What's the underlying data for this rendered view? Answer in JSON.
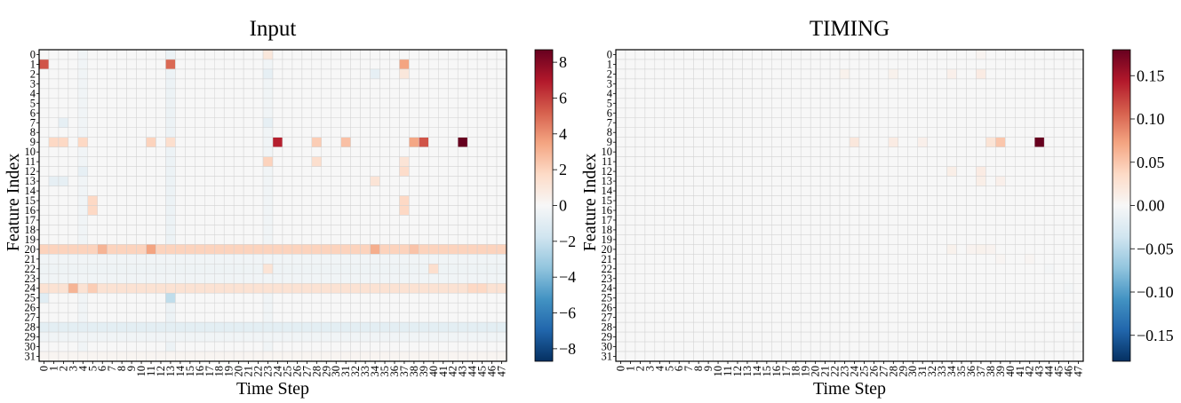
{
  "chart_data": [
    {
      "type": "heatmap",
      "title": "Input",
      "xlabel": "Time Step",
      "ylabel": "Feature Index",
      "x_ticks": [
        "0",
        "1",
        "2",
        "3",
        "4",
        "5",
        "6",
        "7",
        "8",
        "9",
        "10",
        "11",
        "12",
        "13",
        "14",
        "15",
        "16",
        "17",
        "18",
        "19",
        "20",
        "21",
        "22",
        "23",
        "24",
        "25",
        "26",
        "27",
        "28",
        "29",
        "30",
        "31",
        "32",
        "33",
        "34",
        "35",
        "36",
        "37",
        "38",
        "39",
        "40",
        "41",
        "42",
        "43",
        "44",
        "45",
        "46",
        "47"
      ],
      "y_ticks": [
        "0",
        "1",
        "2",
        "3",
        "4",
        "5",
        "6",
        "7",
        "8",
        "9",
        "10",
        "11",
        "12",
        "13",
        "14",
        "15",
        "16",
        "17",
        "18",
        "19",
        "20",
        "21",
        "22",
        "23",
        "24",
        "25",
        "26",
        "27",
        "28",
        "29",
        "30",
        "31"
      ],
      "colorbar": {
        "min": -8.7,
        "max": 8.7,
        "ticks": [
          8,
          6,
          4,
          2,
          0,
          -2,
          -4,
          -6,
          -8
        ],
        "tick_labels": [
          "8",
          "6",
          "4",
          "2",
          "0",
          "−2",
          "−4",
          "−6",
          "−8"
        ]
      },
      "colormap": "RdBu_r",
      "row_defaults": [
        {
          "row": 20,
          "value": 2.0
        },
        {
          "row": 24,
          "value": 1.3
        },
        {
          "row": 22,
          "value": -0.4
        },
        {
          "row": 23,
          "value": -0.3
        },
        {
          "row": 21,
          "value": -0.3
        },
        {
          "row": 28,
          "value": -0.9
        },
        {
          "row": 29,
          "value": -0.3
        },
        {
          "row": 31,
          "value": 0.2
        }
      ],
      "column_defaults": [
        {
          "col": 13,
          "value": -0.5
        },
        {
          "col": 4,
          "value": -0.3
        },
        {
          "col": 23,
          "value": -0.3
        }
      ],
      "cells": [
        {
          "row": 1,
          "col": 0,
          "value": 5.5
        },
        {
          "row": 1,
          "col": 13,
          "value": 5.0
        },
        {
          "row": 1,
          "col": 37,
          "value": 3.5
        },
        {
          "row": 0,
          "col": 23,
          "value": 1.0
        },
        {
          "row": 2,
          "col": 23,
          "value": -0.8
        },
        {
          "row": 2,
          "col": 34,
          "value": -0.8
        },
        {
          "row": 2,
          "col": 37,
          "value": 1.0
        },
        {
          "row": 7,
          "col": 2,
          "value": -0.8
        },
        {
          "row": 7,
          "col": 23,
          "value": -0.8
        },
        {
          "row": 9,
          "col": 1,
          "value": 1.8
        },
        {
          "row": 9,
          "col": 2,
          "value": 1.8
        },
        {
          "row": 9,
          "col": 4,
          "value": 1.8
        },
        {
          "row": 9,
          "col": 11,
          "value": 2.0
        },
        {
          "row": 9,
          "col": 13,
          "value": 1.5
        },
        {
          "row": 9,
          "col": 24,
          "value": 6.8
        },
        {
          "row": 9,
          "col": 28,
          "value": 2.2
        },
        {
          "row": 9,
          "col": 31,
          "value": 2.6
        },
        {
          "row": 9,
          "col": 38,
          "value": 3.4
        },
        {
          "row": 9,
          "col": 39,
          "value": 5.5
        },
        {
          "row": 9,
          "col": 43,
          "value": 8.7
        },
        {
          "row": 11,
          "col": 23,
          "value": 2.0
        },
        {
          "row": 11,
          "col": 28,
          "value": 1.5
        },
        {
          "row": 11,
          "col": 37,
          "value": 1.2
        },
        {
          "row": 12,
          "col": 4,
          "value": -0.8
        },
        {
          "row": 12,
          "col": 37,
          "value": 1.6
        },
        {
          "row": 13,
          "col": 1,
          "value": -0.8
        },
        {
          "row": 13,
          "col": 2,
          "value": -0.8
        },
        {
          "row": 13,
          "col": 34,
          "value": 1.2
        },
        {
          "row": 15,
          "col": 5,
          "value": 1.8
        },
        {
          "row": 16,
          "col": 5,
          "value": 1.8
        },
        {
          "row": 15,
          "col": 37,
          "value": 1.8
        },
        {
          "row": 16,
          "col": 37,
          "value": 1.8
        },
        {
          "row": 20,
          "col": 6,
          "value": 3.0
        },
        {
          "row": 20,
          "col": 11,
          "value": 3.5
        },
        {
          "row": 20,
          "col": 34,
          "value": 3.2
        },
        {
          "row": 20,
          "col": 38,
          "value": 2.5
        },
        {
          "row": 22,
          "col": 23,
          "value": 1.2
        },
        {
          "row": 22,
          "col": 40,
          "value": 1.5
        },
        {
          "row": 24,
          "col": 3,
          "value": 3.0
        },
        {
          "row": 24,
          "col": 5,
          "value": 2.2
        },
        {
          "row": 24,
          "col": 44,
          "value": 1.8
        },
        {
          "row": 24,
          "col": 45,
          "value": 1.8
        },
        {
          "row": 25,
          "col": 13,
          "value": -2.2
        },
        {
          "row": 25,
          "col": 0,
          "value": -1.0
        }
      ]
    },
    {
      "type": "heatmap",
      "title": "TIMING",
      "xlabel": "Time Step",
      "ylabel": "Feature Index",
      "x_ticks": [
        "0",
        "1",
        "2",
        "3",
        "4",
        "5",
        "6",
        "7",
        "8",
        "9",
        "10",
        "11",
        "12",
        "13",
        "14",
        "15",
        "16",
        "17",
        "18",
        "19",
        "20",
        "21",
        "22",
        "23",
        "24",
        "25",
        "26",
        "27",
        "28",
        "29",
        "30",
        "31",
        "32",
        "33",
        "34",
        "35",
        "36",
        "37",
        "38",
        "39",
        "40",
        "41",
        "42",
        "43",
        "44",
        "45",
        "46",
        "47"
      ],
      "y_ticks": [
        "0",
        "1",
        "2",
        "3",
        "4",
        "5",
        "6",
        "7",
        "8",
        "9",
        "10",
        "11",
        "12",
        "13",
        "14",
        "15",
        "16",
        "17",
        "18",
        "19",
        "20",
        "21",
        "22",
        "23",
        "24",
        "25",
        "26",
        "27",
        "28",
        "29",
        "30",
        "31"
      ],
      "colorbar": {
        "min": -0.18,
        "max": 0.18,
        "ticks": [
          0.15,
          0.1,
          0.05,
          0.0,
          -0.05,
          -0.1,
          -0.15
        ],
        "tick_labels": [
          "0.15",
          "0.10",
          "0.05",
          "0.00",
          "−0.05",
          "−0.10",
          "−0.15"
        ]
      },
      "colormap": "RdBu_r",
      "row_defaults": [],
      "column_defaults": [],
      "cells": [
        {
          "row": 9,
          "col": 43,
          "value": 0.18
        },
        {
          "row": 9,
          "col": 39,
          "value": 0.05
        },
        {
          "row": 9,
          "col": 38,
          "value": 0.025
        },
        {
          "row": 9,
          "col": 24,
          "value": 0.02
        },
        {
          "row": 9,
          "col": 28,
          "value": 0.015
        },
        {
          "row": 9,
          "col": 31,
          "value": 0.01
        },
        {
          "row": 2,
          "col": 23,
          "value": 0.008
        },
        {
          "row": 2,
          "col": 28,
          "value": 0.008
        },
        {
          "row": 2,
          "col": 34,
          "value": 0.01
        },
        {
          "row": 2,
          "col": 37,
          "value": 0.015
        },
        {
          "row": 0,
          "col": 37,
          "value": 0.005
        },
        {
          "row": 12,
          "col": 34,
          "value": 0.012
        },
        {
          "row": 12,
          "col": 37,
          "value": 0.015
        },
        {
          "row": 13,
          "col": 37,
          "value": 0.012
        },
        {
          "row": 13,
          "col": 39,
          "value": 0.01
        },
        {
          "row": 20,
          "col": 34,
          "value": 0.008
        },
        {
          "row": 20,
          "col": 36,
          "value": 0.006
        },
        {
          "row": 20,
          "col": 37,
          "value": 0.008
        },
        {
          "row": 20,
          "col": 38,
          "value": 0.006
        },
        {
          "row": 21,
          "col": 39,
          "value": 0.004
        },
        {
          "row": 21,
          "col": 42,
          "value": 0.004
        },
        {
          "row": 22,
          "col": 44,
          "value": -0.004
        },
        {
          "row": 24,
          "col": 46,
          "value": -0.004
        },
        {
          "row": 28,
          "col": 47,
          "value": -0.004
        }
      ]
    }
  ]
}
